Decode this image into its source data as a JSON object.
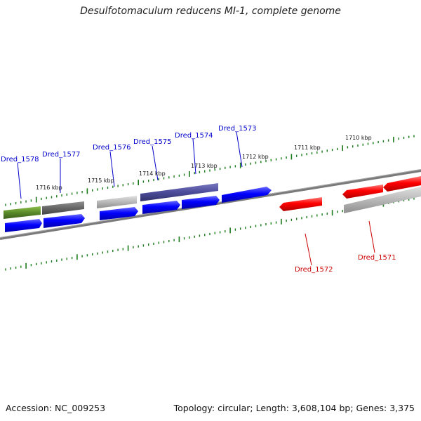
{
  "header": {
    "title": "Desulfotomaculum reducens MI-1, complete genome"
  },
  "footer": {
    "accession": "Accession: NC_009253",
    "summary": "Topology: circular; Length: 3,608,104 bp; Genes: 3,375"
  },
  "ticks": [
    "1716 kbp",
    "1715 kbp",
    "1714 kbp",
    "1713 kbp",
    "1712 kbp",
    "1711 kbp",
    "1710 kbp"
  ],
  "genes_forward": [
    "Dred_1578",
    "Dred_1577",
    "Dred_1576",
    "Dred_1575",
    "Dred_1574",
    "Dred_1573"
  ],
  "genes_reverse": [
    "Dred_1572",
    "Dred_1571"
  ],
  "colors": {
    "forward_label": "#0000cc",
    "reverse_label": "#cc0000",
    "cds_forward": "#0000ff",
    "cds_reverse": "#ff0000",
    "feature_green": "#5a8a2a",
    "feature_dark_gray": "#666666",
    "feature_light_gray": "#b8b8b8",
    "feature_slate": "#4b4b9a",
    "backbone": "#808080",
    "tick_green": "#1a7a1a"
  }
}
